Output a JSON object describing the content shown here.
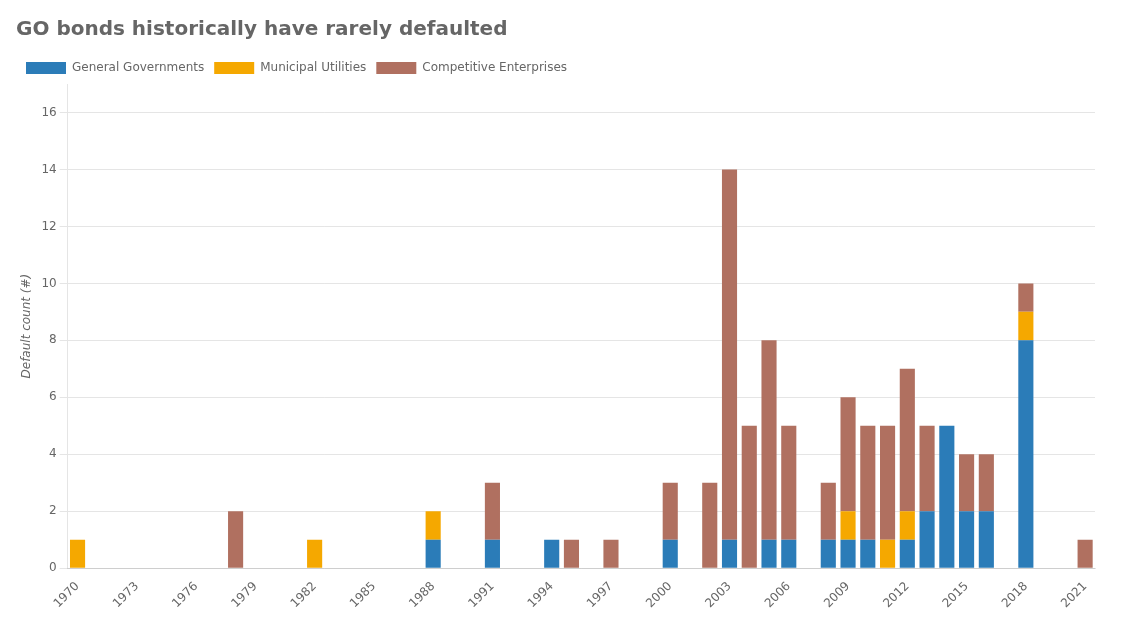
{
  "chart_data": {
    "type": "bar",
    "title": "GO bonds historically have rarely defaulted",
    "ylabel": "Default count (#)",
    "categories": [
      "1970",
      null,
      null,
      "1973",
      null,
      null,
      "1976",
      null,
      null,
      "1979",
      null,
      null,
      "1982",
      null,
      null,
      "1985",
      null,
      null,
      "1988",
      null,
      null,
      "1991",
      null,
      null,
      "1994",
      null,
      null,
      "1997",
      null,
      null,
      "2000",
      null,
      null,
      "2003",
      null,
      null,
      "2006",
      null,
      null,
      "2009",
      null,
      null,
      "2012",
      null,
      null,
      "2015",
      null,
      null,
      "2018",
      null,
      null,
      "2021"
    ],
    "series": [
      {
        "name": "General Governments",
        "color": "#2b7cb8",
        "values": [
          0,
          0,
          0,
          0,
          0,
          0,
          0,
          0,
          0,
          0,
          0,
          0,
          0,
          0,
          0,
          0,
          0,
          0,
          1,
          0,
          0,
          1,
          0,
          0,
          1,
          0,
          0,
          0,
          0,
          0,
          1,
          0,
          0,
          1,
          0,
          1,
          1,
          0,
          1,
          1,
          1,
          0,
          1,
          2,
          5,
          2,
          2,
          0,
          8,
          0,
          0,
          0
        ]
      },
      {
        "name": "Municipal Utilities",
        "color": "#f5a800",
        "values": [
          1,
          0,
          0,
          0,
          0,
          0,
          0,
          0,
          0,
          0,
          0,
          0,
          1,
          0,
          0,
          0,
          0,
          0,
          1,
          0,
          0,
          0,
          0,
          0,
          0,
          0,
          0,
          0,
          0,
          0,
          0,
          0,
          0,
          0,
          0,
          0,
          0,
          0,
          0,
          1,
          0,
          1,
          1,
          0,
          0,
          0,
          0,
          0,
          1,
          0,
          0,
          0
        ]
      },
      {
        "name": "Competitive Enterprises",
        "color": "#b07060",
        "values": [
          0,
          0,
          0,
          0,
          0,
          0,
          0,
          0,
          2,
          0,
          0,
          0,
          0,
          0,
          0,
          0,
          0,
          0,
          0,
          0,
          0,
          2,
          0,
          0,
          0,
          1,
          0,
          1,
          0,
          0,
          2,
          0,
          3,
          13,
          5,
          7,
          4,
          0,
          2,
          4,
          4,
          4,
          5,
          3,
          0,
          2,
          2,
          0,
          1,
          0,
          0,
          1
        ]
      }
    ],
    "stacked": true,
    "ylim": [
      0,
      17
    ],
    "yticks": [
      0,
      2,
      4,
      6,
      8,
      10,
      12,
      14,
      16
    ],
    "grid": true,
    "legend": "upper left"
  }
}
